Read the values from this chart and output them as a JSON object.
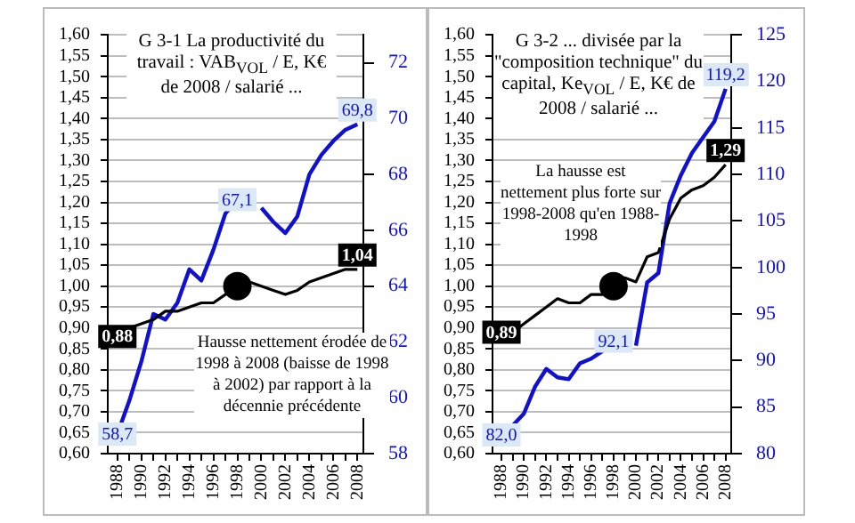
{
  "chart_data": [
    {
      "type": "line",
      "title": "G 3-1  La productivité du travail : VAB$_{VOL}$ / E, K€ de 2008 / salarié ...",
      "annotations": [
        "Hausse nettement érodée de 1998 à 2008 (baisse de 1998 à 2002) par rapport à la décennie précédente"
      ],
      "x": [
        1988,
        1989,
        1990,
        1991,
        1992,
        1993,
        1994,
        1995,
        1996,
        1997,
        1998,
        1999,
        2000,
        2001,
        2002,
        2003,
        2004,
        2005,
        2006,
        2007,
        2008
      ],
      "series": [
        {
          "color": "#000000",
          "values": [
            0.88,
            0.9,
            0.91,
            0.92,
            0.94,
            0.94,
            0.95,
            0.96,
            0.96,
            0.98,
            1.0,
            1.01,
            1.0,
            0.99,
            0.98,
            0.99,
            1.01,
            1.02,
            1.03,
            1.04,
            1.04
          ],
          "value_labels": [
            "0,88",
            null,
            null,
            null,
            null,
            null,
            null,
            null,
            null,
            null,
            null,
            null,
            null,
            null,
            null,
            null,
            null,
            null,
            null,
            null,
            "1,04"
          ]
        },
        {
          "color": "#1010d0",
          "axis": "y2",
          "values": [
            58.7,
            59.9,
            61.3,
            63.0,
            62.8,
            63.4,
            64.6,
            64.2,
            65.3,
            66.6,
            67.1,
            null,
            66.8,
            66.3,
            65.9,
            66.5,
            68.0,
            68.7,
            69.2,
            69.6,
            69.8
          ],
          "value_labels": [
            "58,7",
            null,
            null,
            null,
            null,
            null,
            null,
            null,
            null,
            null,
            "67,1",
            null,
            null,
            null,
            null,
            null,
            null,
            null,
            null,
            null,
            "69,8"
          ]
        },
        {
          "type": "scatter",
          "color": "#000000",
          "marker": "circle",
          "x": [
            1998
          ],
          "values": [
            1.0
          ]
        }
      ],
      "marker": "none",
      "grid": "y",
      "xlim": [
        1987.2,
        2008.5
      ],
      "xticks": [
        1988,
        {
          "value": 1989,
          "label": null
        },
        1990,
        {
          "value": 1991,
          "label": null
        },
        1992,
        {
          "value": 1993,
          "label": null
        },
        1994,
        {
          "value": 1995,
          "label": null
        },
        1996,
        {
          "value": 1997,
          "label": null
        },
        1998,
        {
          "value": 1999,
          "label": null
        },
        2000,
        {
          "value": 2001,
          "label": null
        },
        2002,
        {
          "value": 2003,
          "label": null
        },
        2004,
        {
          "value": 2005,
          "label": null
        },
        2006,
        {
          "value": 2007,
          "label": null
        },
        2008
      ],
      "ylim": [
        0.6,
        1.6
      ],
      "yticks": [
        {
          "value": 0.6,
          "label": "0,60"
        },
        {
          "value": 0.65,
          "label": "0,65"
        },
        {
          "value": 0.7,
          "label": "0,70"
        },
        {
          "value": 0.75,
          "label": "0,75"
        },
        {
          "value": 0.8,
          "label": "0,80"
        },
        {
          "value": 0.85,
          "label": "0,85"
        },
        {
          "value": 0.9,
          "label": "0,90"
        },
        {
          "value": 0.95,
          "label": "0,95"
        },
        {
          "value": 1.0,
          "label": "1,00"
        },
        {
          "value": 1.05,
          "label": "1,05"
        },
        {
          "value": 1.1,
          "label": "1,10"
        },
        {
          "value": 1.15,
          "label": "1,15"
        },
        {
          "value": 1.2,
          "label": "1,20"
        },
        {
          "value": 1.25,
          "label": "1,25"
        },
        {
          "value": 1.3,
          "label": "1,30"
        },
        {
          "value": 1.35,
          "label": "1,35"
        },
        {
          "value": 1.4,
          "label": "1,40"
        },
        {
          "value": 1.45,
          "label": "1,45"
        },
        {
          "value": 1.5,
          "label": "1,50"
        },
        {
          "value": 1.55,
          "label": "1,55"
        },
        {
          "value": 1.6,
          "label": "1,60"
        }
      ],
      "y2lim": [
        58,
        73
      ],
      "y2ticks": [
        58,
        60,
        62,
        64,
        66,
        68,
        70,
        72
      ]
    },
    {
      "type": "line",
      "title": "G 3-2  ... divisée par la \"composition technique\" du capital, Ke$_{VOL}$ / E, K€ de 2008 / salarié ...",
      "annotations": [
        "La hausse est nettement plus forte sur 1998-2008 qu'en 1988-1998"
      ],
      "x": [
        1988,
        1989,
        1990,
        1991,
        1992,
        1993,
        1994,
        1995,
        1996,
        1997,
        1998,
        1999,
        2000,
        2001,
        2002,
        2003,
        2004,
        2005,
        2006,
        2007,
        2008
      ],
      "series": [
        {
          "color": "#000000",
          "values": [
            0.89,
            0.89,
            0.91,
            0.93,
            0.95,
            0.97,
            0.96,
            0.96,
            0.98,
            0.98,
            1.0,
            1.02,
            1.01,
            1.07,
            1.08,
            1.16,
            1.21,
            1.23,
            1.24,
            1.26,
            1.29
          ],
          "value_labels": [
            "0,89",
            null,
            null,
            null,
            null,
            null,
            null,
            null,
            null,
            null,
            null,
            null,
            null,
            null,
            null,
            null,
            null,
            null,
            null,
            null,
            "1,29"
          ]
        },
        {
          "color": "#1010d0",
          "axis": "y2",
          "values": [
            82.0,
            83.0,
            84.3,
            87.2,
            89.1,
            88.2,
            88.0,
            89.7,
            90.2,
            91.0,
            92.1,
            null,
            91.6,
            98.4,
            99.4,
            106.9,
            109.9,
            112.3,
            114.0,
            115.7,
            119.2
          ],
          "value_labels": [
            "82,0",
            null,
            null,
            null,
            null,
            null,
            null,
            null,
            null,
            null,
            "92,1",
            null,
            null,
            null,
            null,
            null,
            null,
            null,
            null,
            null,
            "119,2"
          ]
        },
        {
          "type": "scatter",
          "color": "#000000",
          "marker": "circle",
          "x": [
            1998
          ],
          "values": [
            1.0
          ]
        }
      ],
      "marker": "none",
      "grid": "y",
      "xlim": [
        1987.2,
        2008.5
      ],
      "xticks": [
        1988,
        {
          "value": 1989,
          "label": null
        },
        1990,
        {
          "value": 1991,
          "label": null
        },
        1992,
        {
          "value": 1993,
          "label": null
        },
        1994,
        {
          "value": 1995,
          "label": null
        },
        1996,
        {
          "value": 1997,
          "label": null
        },
        1998,
        {
          "value": 1999,
          "label": null
        },
        2000,
        {
          "value": 2001,
          "label": null
        },
        2002,
        {
          "value": 2003,
          "label": null
        },
        2004,
        {
          "value": 2005,
          "label": null
        },
        2006,
        {
          "value": 2007,
          "label": null
        },
        2008
      ],
      "ylim": [
        0.6,
        1.6
      ],
      "yticks": [
        {
          "value": 0.6,
          "label": "0,60"
        },
        {
          "value": 0.65,
          "label": "0,65"
        },
        {
          "value": 0.7,
          "label": "0,70"
        },
        {
          "value": 0.75,
          "label": "0,75"
        },
        {
          "value": 0.8,
          "label": "0,80"
        },
        {
          "value": 0.85,
          "label": "0,85"
        },
        {
          "value": 0.9,
          "label": "0,90"
        },
        {
          "value": 0.95,
          "label": "0,95"
        },
        {
          "value": 1.0,
          "label": "1,00"
        },
        {
          "value": 1.05,
          "label": "1,05"
        },
        {
          "value": 1.1,
          "label": "1,10"
        },
        {
          "value": 1.15,
          "label": "1,15"
        },
        {
          "value": 1.2,
          "label": "1,20"
        },
        {
          "value": 1.25,
          "label": "1,25"
        },
        {
          "value": 1.3,
          "label": "1,30"
        },
        {
          "value": 1.35,
          "label": "1,35"
        },
        {
          "value": 1.4,
          "label": "1,40"
        },
        {
          "value": 1.45,
          "label": "1,45"
        },
        {
          "value": 1.5,
          "label": "1,50"
        },
        {
          "value": 1.55,
          "label": "1,55"
        },
        {
          "value": 1.6,
          "label": "1,60"
        }
      ],
      "y2lim": [
        80,
        125
      ],
      "y2ticks": [
        80,
        85,
        90,
        95,
        100,
        105,
        110,
        115,
        120,
        125
      ]
    }
  ]
}
